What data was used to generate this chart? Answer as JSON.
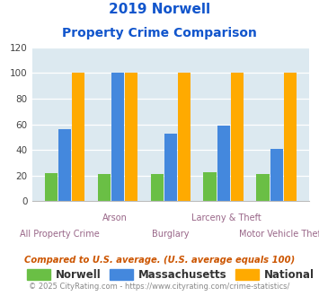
{
  "title_line1": "2019 Norwell",
  "title_line2": "Property Crime Comparison",
  "categories": [
    "All Property Crime",
    "Arson",
    "Burglary",
    "Larceny & Theft",
    "Motor Vehicle Theft"
  ],
  "label_top": [
    "",
    "Arson",
    "",
    "Larceny & Theft",
    ""
  ],
  "label_bot": [
    "All Property Crime",
    "",
    "Burglary",
    "",
    "Motor Vehicle Theft"
  ],
  "norwell": [
    22,
    21,
    21,
    23,
    21
  ],
  "massachusetts": [
    56,
    100,
    53,
    59,
    41
  ],
  "national": [
    100,
    100,
    100,
    100,
    100
  ],
  "norwell_color": "#6abf45",
  "massachusetts_color": "#4488dd",
  "national_color": "#ffaa00",
  "ylim": [
    0,
    120
  ],
  "yticks": [
    0,
    20,
    40,
    60,
    80,
    100,
    120
  ],
  "plot_bg": "#dce9f0",
  "legend_labels": [
    "Norwell",
    "Massachusetts",
    "National"
  ],
  "footnote1": "Compared to U.S. average. (U.S. average equals 100)",
  "footnote2": "© 2025 CityRating.com - https://www.cityrating.com/crime-statistics/",
  "title_color": "#1155cc",
  "xlabel_color": "#996688",
  "footnote1_color": "#cc5500",
  "footnote2_color": "#888888",
  "copyright_link_color": "#3366cc"
}
